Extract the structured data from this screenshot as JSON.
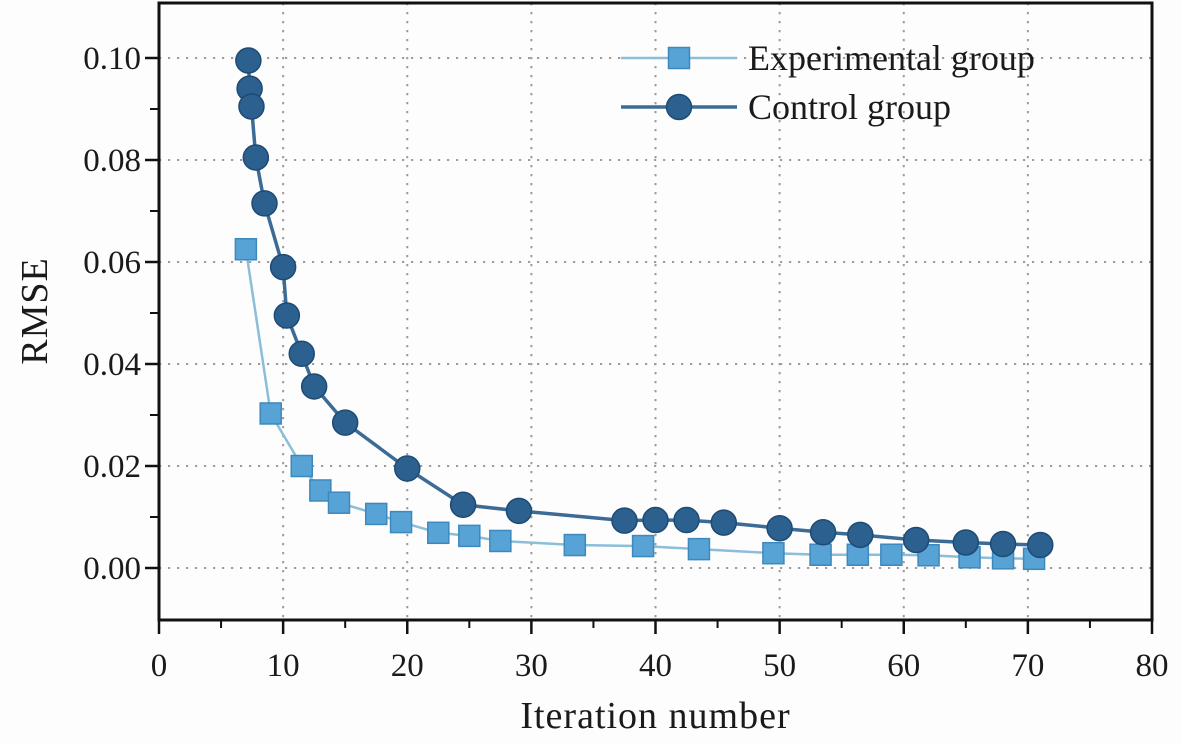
{
  "chart_data": {
    "type": "line",
    "title": "",
    "xlabel": "Iteration number",
    "ylabel": "RMSE",
    "xlim": [
      0,
      80
    ],
    "ylim": [
      -0.0102,
      0.1108
    ],
    "grid": {
      "show": true,
      "style": "dotted",
      "at": "major-ticks"
    },
    "legend_position": "upper-right-inside",
    "xticks": {
      "major": [
        0,
        10,
        20,
        30,
        40,
        50,
        60,
        70,
        80
      ],
      "labels": [
        "0",
        "10",
        "20",
        "30",
        "40",
        "50",
        "60",
        "70",
        "80"
      ],
      "minor": [
        5,
        15,
        25,
        35,
        45,
        55,
        65,
        75
      ]
    },
    "yticks": {
      "major": [
        0.0,
        0.02,
        0.04,
        0.06,
        0.08,
        0.1
      ],
      "labels": [
        "0.00",
        "0.02",
        "0.04",
        "0.06",
        "0.08",
        "0.10"
      ],
      "minor": [
        0.01,
        0.03,
        0.05,
        0.07,
        0.09
      ]
    },
    "series": [
      {
        "name": "Experimental group",
        "marker": "square",
        "marker_color": "#58a3d5",
        "marker_edge": "#3d88bd",
        "line_color": "#8cbdd9",
        "line_width": 2.5,
        "x": [
          7,
          9,
          11.5,
          13,
          14.5,
          17.5,
          19.5,
          22.5,
          25,
          27.5,
          33.5,
          39,
          43.5,
          49.5,
          53.3,
          56.3,
          59,
          62,
          65.3,
          68,
          70.5
        ],
        "y": [
          0.0625,
          0.0303,
          0.02,
          0.0152,
          0.0128,
          0.0106,
          0.009,
          0.0069,
          0.0063,
          0.0053,
          0.0045,
          0.0043,
          0.0037,
          0.0029,
          0.0026,
          0.0026,
          0.0026,
          0.0025,
          0.0021,
          0.0019,
          0.0018
        ]
      },
      {
        "name": "Control group",
        "marker": "circle",
        "marker_color": "#2c608f",
        "marker_edge": "#1d4b75",
        "line_color": "#3c6b96",
        "line_width": 3.5,
        "x": [
          7.2,
          7.3,
          7.45,
          7.8,
          8.5,
          10,
          10.3,
          11.5,
          12.5,
          15,
          20,
          24.5,
          29,
          37.5,
          40,
          42.5,
          45.5,
          50,
          53.5,
          56.5,
          61,
          65,
          68,
          71
        ],
        "y": [
          0.0995,
          0.094,
          0.0905,
          0.0805,
          0.0715,
          0.059,
          0.0495,
          0.042,
          0.0356,
          0.0285,
          0.0195,
          0.0124,
          0.0112,
          0.0093,
          0.0094,
          0.0094,
          0.0089,
          0.0078,
          0.007,
          0.0065,
          0.0055,
          0.005,
          0.0047,
          0.0045
        ]
      }
    ]
  },
  "colors": {
    "frame": "#111111",
    "grid": "#9c9c9c",
    "text": "#1a1a1a",
    "background": "#fdfdfd"
  }
}
